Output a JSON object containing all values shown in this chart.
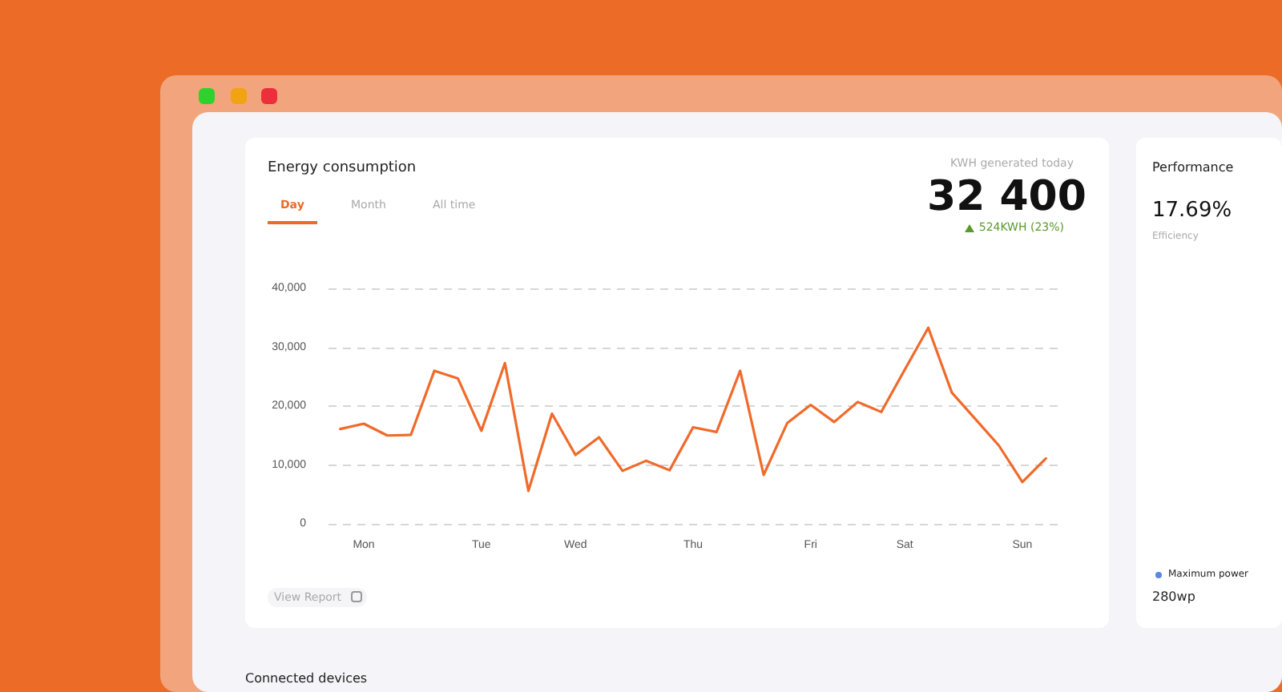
{
  "chart_data": [
    {
      "type": "line",
      "title": "Energy consumption",
      "categories": [
        null,
        "Mon",
        null,
        null,
        null,
        null,
        "Tue",
        null,
        null,
        null,
        "Wed",
        null,
        null,
        null,
        null,
        "Thu",
        null,
        null,
        null,
        null,
        "Fri",
        null,
        null,
        null,
        "Sat",
        null,
        null,
        null,
        null,
        "Sun",
        null
      ],
      "series": [
        {
          "color": "#f06a2a",
          "values": [
            16100,
            17000,
            15000,
            15100,
            26000,
            24700,
            15800,
            27300,
            5600,
            18700,
            11700,
            14700,
            9000,
            10700,
            9100,
            16400,
            15600,
            26000,
            8300,
            17100,
            20200,
            17300,
            20700,
            19000,
            26200,
            33300,
            22300,
            17800,
            13300,
            7100,
            11100
          ]
        }
      ],
      "ylim": [
        0,
        40000
      ],
      "yticks": [
        0,
        {
          "value": 10000,
          "label": "10,000"
        },
        {
          "value": 20000,
          "label": "20,000"
        },
        {
          "value": 30000,
          "label": "30,000"
        },
        {
          "value": 40000,
          "label": "40,000"
        }
      ],
      "grid": "y",
      "marker": "none",
      "line_style": "solid",
      "annotations": [
        "Day",
        "Month",
        "All time",
        "KWH generated today",
        "32 400",
        "524KWH (23%)",
        "View Report",
        "Connected devices"
      ]
    },
    {
      "type": "other",
      "title": "Performance",
      "annotations": [
        "17.69%",
        "Efficiency",
        "Maximum power",
        "280wp"
      ]
    }
  ]
}
